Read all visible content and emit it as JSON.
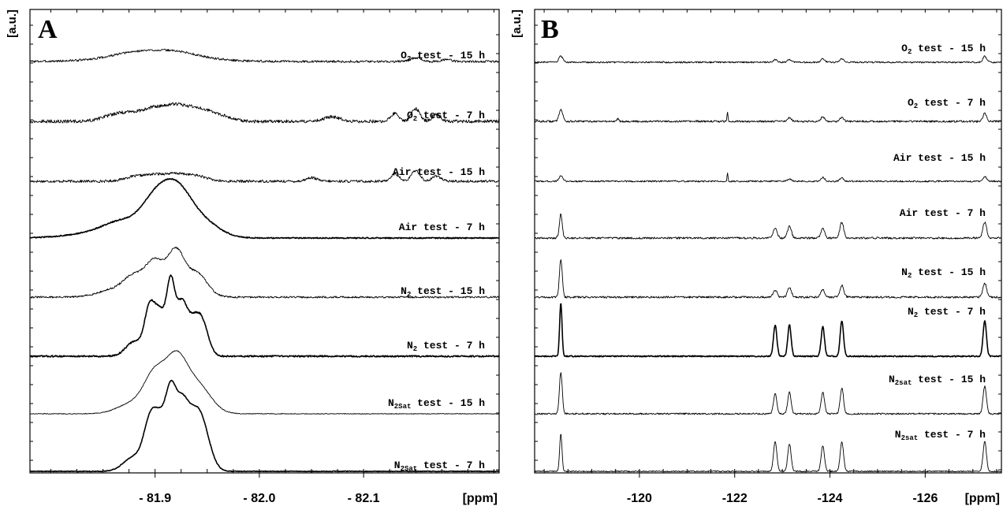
{
  "chart_data": [
    {
      "panel": "A",
      "type": "line",
      "yunit": "[a.u.]",
      "xunit": "[ppm]",
      "xlim": [
        -81.78,
        -82.23
      ],
      "xticks": [
        {
          "value": -81.9,
          "label": "- 81.9"
        },
        {
          "value": -82.0,
          "label": "- 82.0"
        },
        {
          "value": -82.1,
          "label": "- 82.1"
        }
      ],
      "series": [
        {
          "gas": "O",
          "sub": "2",
          "rest": " test - 15 h",
          "bold": false,
          "peaks": [
            [
              -81.9,
              0.18,
              0.04
            ],
            [
              -81.92,
              0.12,
              0.02
            ],
            [
              -81.88,
              0.1,
              0.02
            ],
            [
              -82.15,
              0.1,
              0.005
            ],
            [
              -82.18,
              0.06,
              0.004
            ]
          ],
          "noise": 0.06
        },
        {
          "gas": "O",
          "sub": "2",
          "rest": " test - 7 h",
          "bold": false,
          "peaks": [
            [
              -81.92,
              0.4,
              0.01
            ],
            [
              -81.94,
              0.3,
              0.01
            ],
            [
              -81.9,
              0.3,
              0.01
            ],
            [
              -81.88,
              0.2,
              0.012
            ],
            [
              -81.86,
              0.15,
              0.012
            ],
            [
              -81.96,
              0.18,
              0.012
            ],
            [
              -82.07,
              0.12,
              0.008
            ],
            [
              -82.13,
              0.22,
              0.004
            ],
            [
              -82.15,
              0.35,
              0.004
            ],
            [
              -82.17,
              0.18,
              0.004
            ]
          ],
          "noise": 0.09
        },
        {
          "gas": "Air",
          "sub": "",
          "rest": " test - 15 h",
          "bold": false,
          "peaks": [
            [
              -81.92,
              0.18,
              0.01
            ],
            [
              -81.94,
              0.14,
              0.01
            ],
            [
              -81.9,
              0.16,
              0.01
            ],
            [
              -81.88,
              0.12,
              0.01
            ],
            [
              -82.05,
              0.1,
              0.005
            ],
            [
              -82.13,
              0.2,
              0.004
            ],
            [
              -82.15,
              0.3,
              0.004
            ],
            [
              -82.17,
              0.15,
              0.004
            ]
          ],
          "noise": 0.07
        },
        {
          "gas": "Air",
          "sub": "",
          "rest": " test - 7 h",
          "bold": true,
          "peaks": [
            [
              -81.94,
              0.55,
              0.018
            ],
            [
              -81.92,
              1.0,
              0.013
            ],
            [
              -81.9,
              0.9,
              0.013
            ],
            [
              -81.87,
              0.35,
              0.018
            ],
            [
              -81.85,
              0.15,
              0.03
            ]
          ],
          "noise": 0.03
        },
        {
          "gas": "N",
          "sub": "2",
          "rest": " test - 15 h",
          "bold": false,
          "peaks": [
            [
              -81.94,
              0.65,
              0.01
            ],
            [
              -81.92,
              1.2,
              0.008
            ],
            [
              -81.9,
              0.95,
              0.009
            ],
            [
              -81.88,
              0.5,
              0.01
            ],
            [
              -81.86,
              0.2,
              0.015
            ]
          ],
          "noise": 0.05
        },
        {
          "gas": "N",
          "sub": "2",
          "rest": " test - 7 h",
          "bold": true,
          "peaks": [
            [
              -81.945,
              0.9,
              0.006
            ],
            [
              -81.935,
              0.8,
              0.006
            ],
            [
              -81.925,
              1.3,
              0.005
            ],
            [
              -81.915,
              1.9,
              0.004
            ],
            [
              -81.905,
              1.1,
              0.005
            ],
            [
              -81.895,
              1.3,
              0.005
            ],
            [
              -81.88,
              0.4,
              0.008
            ]
          ],
          "noise": 0.04
        },
        {
          "gas": "N",
          "sub": "2Sat",
          "rest": " test - 15 h",
          "bold": false,
          "peaks": [
            [
              -81.94,
              0.8,
              0.013
            ],
            [
              -81.92,
              1.35,
              0.01
            ],
            [
              -81.9,
              1.0,
              0.01
            ],
            [
              -81.88,
              0.3,
              0.015
            ]
          ],
          "noise": 0.02
        },
        {
          "gas": "N",
          "sub": "2Sat",
          "rest": " test - 7 h",
          "bold": true,
          "peaks": [
            [
              -81.945,
              1.1,
              0.008
            ],
            [
              -81.935,
              1.0,
              0.008
            ],
            [
              -81.925,
              1.4,
              0.006
            ],
            [
              -81.915,
              1.8,
              0.005
            ],
            [
              -81.905,
              1.2,
              0.006
            ],
            [
              -81.895,
              1.2,
              0.006
            ],
            [
              -81.88,
              0.4,
              0.01
            ]
          ],
          "noise": 0.02
        }
      ]
    },
    {
      "panel": "B",
      "type": "line",
      "yunit": "[a.u.]",
      "xunit": "[ppm]",
      "xlim": [
        -117.8,
        -127.6
      ],
      "xticks": [
        {
          "value": -120,
          "label": "-120"
        },
        {
          "value": -122,
          "label": "-122"
        },
        {
          "value": -124,
          "label": "-124"
        },
        {
          "value": -126,
          "label": "-126"
        }
      ],
      "series": [
        {
          "gas": "O",
          "sub": "2",
          "rest": " test - 15 h",
          "bold": false,
          "peaks": [
            [
              -118.35,
              0.15,
              0.04
            ],
            [
              -122.85,
              0.07,
              0.04
            ],
            [
              -123.15,
              0.07,
              0.04
            ],
            [
              -123.85,
              0.09,
              0.04
            ],
            [
              -124.25,
              0.09,
              0.04
            ],
            [
              -127.25,
              0.15,
              0.04
            ]
          ],
          "noise": 0.04
        },
        {
          "gas": "O",
          "sub": "2",
          "rest": " test - 7 h",
          "bold": false,
          "peaks": [
            [
              -118.35,
              0.3,
              0.04
            ],
            [
              -119.55,
              0.08,
              0.02
            ],
            [
              -121.85,
              0.25,
              0.01
            ],
            [
              -123.15,
              0.1,
              0.04
            ],
            [
              -123.85,
              0.12,
              0.04
            ],
            [
              -124.25,
              0.1,
              0.04
            ],
            [
              -127.25,
              0.2,
              0.04
            ]
          ],
          "noise": 0.05
        },
        {
          "gas": "Air",
          "sub": "",
          "rest": " test - 15 h",
          "bold": false,
          "peaks": [
            [
              -118.35,
              0.13,
              0.04
            ],
            [
              -121.85,
              0.2,
              0.01
            ],
            [
              -123.15,
              0.05,
              0.04
            ],
            [
              -123.85,
              0.1,
              0.04
            ],
            [
              -124.25,
              0.08,
              0.04
            ],
            [
              -127.25,
              0.12,
              0.04
            ]
          ],
          "noise": 0.04
        },
        {
          "gas": "Air",
          "sub": "",
          "rest": " test - 7 h",
          "bold": false,
          "peaks": [
            [
              -118.35,
              0.6,
              0.03
            ],
            [
              -122.85,
              0.25,
              0.04
            ],
            [
              -123.15,
              0.3,
              0.04
            ],
            [
              -123.85,
              0.25,
              0.04
            ],
            [
              -124.25,
              0.4,
              0.04
            ],
            [
              -127.25,
              0.4,
              0.04
            ]
          ],
          "noise": 0.05
        },
        {
          "gas": "N",
          "sub": "2",
          "rest": " test - 15 h",
          "bold": false,
          "peaks": [
            [
              -118.35,
              0.95,
              0.03
            ],
            [
              -122.85,
              0.18,
              0.04
            ],
            [
              -123.15,
              0.25,
              0.04
            ],
            [
              -123.85,
              0.2,
              0.04
            ],
            [
              -124.25,
              0.3,
              0.04
            ],
            [
              -127.25,
              0.35,
              0.04
            ]
          ],
          "noise": 0.05
        },
        {
          "gas": "N",
          "sub": "2",
          "rest": " test - 7 h",
          "bold": true,
          "peaks": [
            [
              -118.35,
              1.35,
              0.025
            ],
            [
              -122.85,
              0.8,
              0.035
            ],
            [
              -123.15,
              0.8,
              0.035
            ],
            [
              -123.85,
              0.75,
              0.035
            ],
            [
              -124.25,
              0.9,
              0.035
            ],
            [
              -127.25,
              0.9,
              0.035
            ]
          ],
          "noise": 0.03
        },
        {
          "gas": "N",
          "sub": "2sat",
          "rest": " test - 15 h",
          "bold": false,
          "peaks": [
            [
              -118.35,
              1.05,
              0.03
            ],
            [
              -122.85,
              0.5,
              0.035
            ],
            [
              -123.15,
              0.55,
              0.035
            ],
            [
              -123.85,
              0.55,
              0.035
            ],
            [
              -124.25,
              0.65,
              0.035
            ],
            [
              -127.25,
              0.7,
              0.035
            ]
          ],
          "noise": 0.04
        },
        {
          "gas": "N",
          "sub": "2sat",
          "rest": " test - 7 h",
          "bold": false,
          "peaks": [
            [
              -118.35,
              0.95,
              0.025
            ],
            [
              -122.85,
              0.75,
              0.035
            ],
            [
              -123.15,
              0.7,
              0.035
            ],
            [
              -123.85,
              0.65,
              0.035
            ],
            [
              -124.25,
              0.75,
              0.035
            ],
            [
              -127.25,
              0.75,
              0.035
            ]
          ],
          "noise": 0.03
        }
      ]
    }
  ]
}
